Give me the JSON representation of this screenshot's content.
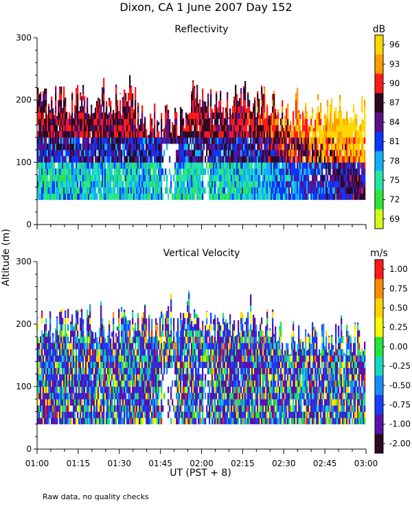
{
  "title": "Dixon, CA  1 June 2007  Day 152",
  "y_axis_label": "Altitude (m)",
  "x_axis_label": "UT  (PST + 8)",
  "note": "Raw data, no quality checks",
  "chart_data": [
    {
      "type": "heatmap",
      "title": "Reflectivity",
      "colorbar_unit": "dB",
      "colorbar_ticks": [
        "96",
        "93",
        "90",
        "87",
        "84",
        "81",
        "78",
        "75",
        "72",
        "69"
      ],
      "colorbar_colors": [
        "#ffd700",
        "#ff9d00",
        "#ff1a1a",
        "#2a0a20",
        "#5c0f86",
        "#0a37ff",
        "#13b0ff",
        "#25e6a6",
        "#2ee63a",
        "#d0ff1a"
      ],
      "xlim": [
        "01:00",
        "03:00"
      ],
      "ylim": [
        0,
        300
      ],
      "y_ticks": [
        0,
        100,
        200,
        300
      ],
      "x_ticks": [
        "01:00",
        "01:15",
        "01:30",
        "01:45",
        "02:00",
        "02:15",
        "02:30",
        "02:45",
        "03:00"
      ],
      "data_altitude_range_m": [
        40,
        260
      ],
      "description_key": "reflectivity"
    },
    {
      "type": "heatmap",
      "title": "Vertical Velocity",
      "colorbar_unit": "m/s",
      "colorbar_ticks": [
        "1.00",
        "0.75",
        "0.50",
        "0.25",
        "0.00",
        "-0.25",
        "-0.50",
        "-0.75",
        "-1.00",
        "-2.00"
      ],
      "colorbar_colors": [
        "#ff1a1a",
        "#ff8c00",
        "#ffd400",
        "#f5ff00",
        "#22e63a",
        "#16d9c0",
        "#1a8cff",
        "#1a3cff",
        "#5a12a8",
        "#2a0a20"
      ],
      "xlim": [
        "01:00",
        "03:00"
      ],
      "ylim": [
        0,
        300
      ],
      "y_ticks": [
        0,
        100,
        200,
        300
      ],
      "x_ticks": [
        "01:00",
        "01:15",
        "01:30",
        "01:45",
        "02:00",
        "02:15",
        "02:30",
        "02:45",
        "03:00"
      ],
      "data_altitude_range_m": [
        40,
        260
      ],
      "description_key": "velocity"
    }
  ]
}
